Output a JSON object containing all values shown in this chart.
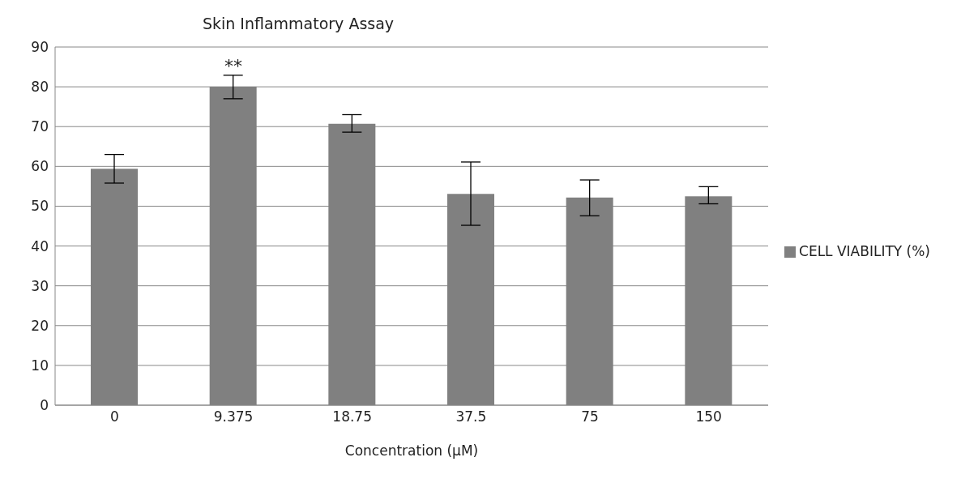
{
  "chart_data": {
    "type": "bar",
    "title": "Skin Inflammatory Assay",
    "xlabel": "Concentration (µM)",
    "categories": [
      "0",
      "9.375",
      "18.75",
      "37.5",
      "75",
      "150"
    ],
    "series": [
      {
        "name": "CELL VIABILITY (%)",
        "color": "#808080",
        "values": [
          59.4,
          80,
          70.7,
          53.1,
          52.2,
          52.5
        ],
        "errors": [
          [
            55.8,
            63.0
          ],
          [
            77.0,
            82.9
          ],
          [
            68.6,
            73.0
          ],
          [
            45.2,
            61.1
          ],
          [
            47.6,
            56.6
          ],
          [
            50.6,
            54.9
          ]
        ]
      }
    ],
    "annotations": [
      "**"
    ],
    "ylim": [
      0,
      90
    ],
    "yticks": [
      0,
      10,
      20,
      30,
      40,
      50,
      60,
      70,
      80,
      90
    ],
    "grid": "y",
    "legend": "right"
  }
}
